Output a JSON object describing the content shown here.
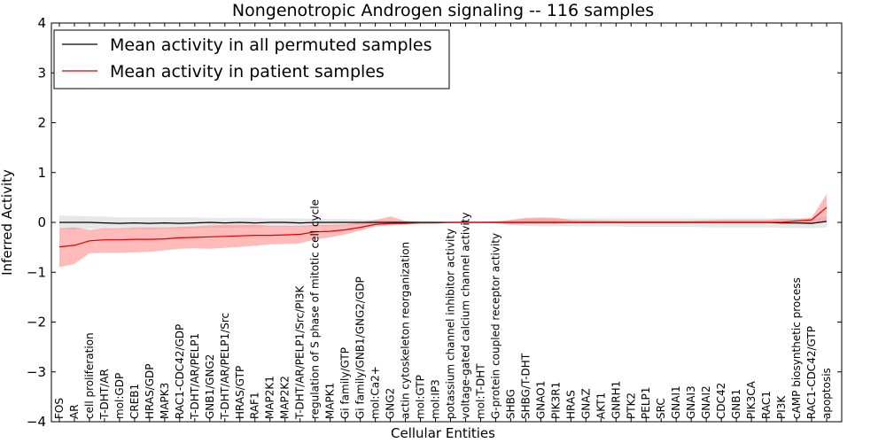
{
  "chart_data": {
    "type": "line",
    "title": "Nongenotropic Androgen signaling -- 116 samples",
    "xlabel": "Cellular Entities",
    "ylabel": "Inferred Activity",
    "ylim": [
      -4,
      4
    ],
    "yticks": [
      "−4",
      "−3",
      "−2",
      "−1",
      "0",
      "1",
      "2",
      "3",
      "4"
    ],
    "grid": false,
    "legend_position": "top-left",
    "categories": [
      "FOS",
      "AR",
      "cell proliferation",
      "T-DHT/AR",
      "mol:GDP",
      "CREB1",
      "HRAS/GDP",
      "MAPK3",
      "RAC1-CDC42/GDP",
      "T-DHT/AR/PELP1",
      "GNB1/GNG2",
      "T-DHT/AR/PELP1/Src",
      "HRAS/GTP",
      "RAF1",
      "MAP2K1",
      "MAP2K2",
      "T-DHT/AR/PELP1/Src/PI3K",
      "regulation of S phase of mitotic cell cycle",
      "MAPK1",
      "Gi family/GTP",
      "Gi family/GNB1/GNG2/GDP",
      "mol:Ca2+",
      "GNG2",
      "actin cytoskeleton reorganization",
      "mol:GTP",
      "mol:IP3",
      "potassium channel inhibitor activity",
      "voltage-gated calcium channel activity",
      "mol:T-DHT",
      "G-protein coupled receptor activity",
      "SHBG",
      "SHBG/T-DHT",
      "GNAO1",
      "PIK3R1",
      "HRAS",
      "GNAZ",
      "AKT1",
      "GNRH1",
      "PTK2",
      "PELP1",
      "SRC",
      "GNAI1",
      "GNAI3",
      "GNAI2",
      "CDC42",
      "GNB1",
      "PIK3CA",
      "RAC1",
      "PI3K",
      "cAMP biosynthetic process",
      "RAC1-CDC42/GTP",
      "apoptosis"
    ],
    "series": [
      {
        "name": "Mean activity in all permuted samples",
        "color": "#000000",
        "band_color": "#b0b0b0",
        "values": [
          0.0,
          0.0,
          0.0,
          -0.01,
          -0.02,
          -0.01,
          -0.02,
          -0.01,
          -0.02,
          -0.01,
          0.0,
          -0.01,
          0.0,
          -0.01,
          0.0,
          0.0,
          -0.01,
          0.0,
          0.0,
          0.0,
          0.0,
          0.0,
          0.0,
          0.0,
          0.0,
          0.0,
          0.0,
          0.0,
          0.0,
          0.0,
          0.0,
          0.0,
          0.0,
          0.0,
          0.0,
          0.0,
          0.0,
          0.0,
          0.0,
          0.0,
          0.0,
          0.0,
          0.0,
          0.0,
          0.0,
          0.0,
          0.0,
          0.0,
          -0.01,
          -0.01,
          -0.02,
          0.02
        ],
        "lower": [
          -0.14,
          -0.14,
          -0.13,
          -0.14,
          -0.14,
          -0.13,
          -0.14,
          -0.13,
          -0.13,
          -0.12,
          -0.1,
          -0.11,
          -0.1,
          -0.1,
          -0.09,
          -0.09,
          -0.09,
          -0.08,
          -0.08,
          -0.07,
          -0.05,
          -0.04,
          -0.03,
          -0.01,
          -0.01,
          -0.01,
          -0.01,
          -0.01,
          -0.01,
          -0.01,
          -0.05,
          -0.07,
          -0.08,
          -0.08,
          -0.08,
          -0.08,
          -0.08,
          -0.08,
          -0.09,
          -0.09,
          -0.09,
          -0.09,
          -0.09,
          -0.1,
          -0.1,
          -0.1,
          -0.1,
          -0.1,
          -0.11,
          -0.11,
          -0.12,
          -0.1
        ],
        "upper": [
          0.14,
          0.13,
          0.12,
          0.12,
          0.1,
          0.1,
          0.1,
          0.1,
          0.1,
          0.1,
          0.09,
          0.09,
          0.09,
          0.09,
          0.08,
          0.08,
          0.08,
          0.07,
          0.07,
          0.07,
          0.06,
          0.05,
          0.04,
          0.02,
          0.01,
          0.01,
          0.01,
          0.01,
          0.01,
          0.01,
          0.05,
          0.07,
          0.08,
          0.08,
          0.08,
          0.08,
          0.08,
          0.08,
          0.08,
          0.08,
          0.08,
          0.08,
          0.08,
          0.08,
          0.08,
          0.08,
          0.08,
          0.08,
          0.08,
          0.08,
          0.08,
          0.12
        ]
      },
      {
        "name": "Mean activity in patient samples",
        "color": "#dd0000",
        "band_color": "#ff6666",
        "values": [
          -0.49,
          -0.46,
          -0.37,
          -0.35,
          -0.35,
          -0.34,
          -0.34,
          -0.33,
          -0.31,
          -0.3,
          -0.29,
          -0.28,
          -0.27,
          -0.26,
          -0.26,
          -0.25,
          -0.24,
          -0.19,
          -0.18,
          -0.15,
          -0.1,
          -0.04,
          -0.02,
          -0.02,
          -0.01,
          -0.01,
          0.0,
          0.0,
          0.0,
          0.0,
          0.0,
          0.0,
          0.0,
          0.0,
          0.0,
          0.0,
          0.0,
          0.0,
          0.0,
          0.0,
          0.0,
          0.0,
          0.0,
          0.0,
          0.0,
          0.0,
          0.0,
          0.0,
          0.0,
          0.03,
          0.05,
          0.3
        ],
        "lower": [
          -0.9,
          -0.83,
          -0.62,
          -0.61,
          -0.61,
          -0.6,
          -0.59,
          -0.56,
          -0.53,
          -0.52,
          -0.53,
          -0.51,
          -0.49,
          -0.47,
          -0.44,
          -0.43,
          -0.42,
          -0.34,
          -0.3,
          -0.24,
          -0.16,
          -0.08,
          -0.06,
          -0.03,
          -0.01,
          -0.01,
          0.0,
          0.0,
          0.0,
          -0.02,
          -0.04,
          -0.03,
          -0.03,
          -0.03,
          -0.02,
          -0.02,
          -0.02,
          -0.02,
          -0.02,
          -0.02,
          -0.02,
          -0.02,
          -0.02,
          -0.02,
          -0.02,
          -0.02,
          -0.02,
          -0.02,
          -0.02,
          -0.02,
          -0.03,
          0.02
        ],
        "upper": [
          -0.12,
          -0.1,
          -0.15,
          -0.12,
          -0.12,
          -0.1,
          -0.1,
          -0.1,
          -0.09,
          -0.08,
          -0.06,
          -0.05,
          -0.05,
          -0.05,
          -0.07,
          -0.07,
          -0.07,
          -0.05,
          -0.05,
          -0.04,
          0.0,
          0.05,
          0.12,
          0.03,
          0.01,
          0.01,
          0.01,
          0.01,
          0.01,
          0.02,
          0.05,
          0.09,
          0.1,
          0.09,
          0.05,
          0.04,
          0.04,
          0.03,
          0.03,
          0.03,
          0.03,
          0.03,
          0.03,
          0.04,
          0.05,
          0.05,
          0.05,
          0.05,
          0.07,
          0.07,
          0.09,
          0.57
        ]
      }
    ]
  }
}
